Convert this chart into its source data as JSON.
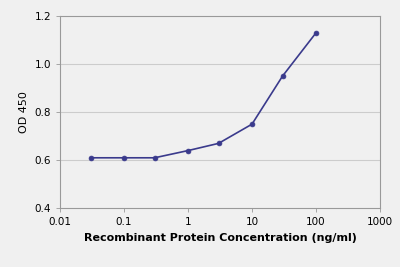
{
  "x": [
    0.03,
    0.1,
    0.3,
    1.0,
    3.0,
    10.0,
    30.0,
    100.0
  ],
  "y": [
    0.61,
    0.61,
    0.61,
    0.64,
    0.67,
    0.75,
    0.95,
    1.13
  ],
  "line_color": "#3a3a8c",
  "marker_color": "#3a3a8c",
  "marker_style": "o",
  "marker_size": 3.5,
  "line_width": 1.2,
  "xlabel": "Recombinant Protein Concentration (ng/ml)",
  "ylabel": "OD 450",
  "xlim": [
    0.01,
    1000
  ],
  "ylim": [
    0.4,
    1.2
  ],
  "yticks": [
    0.4,
    0.6,
    0.8,
    1.0,
    1.2
  ],
  "grid_yticks": [
    0.6,
    0.8,
    1.0
  ],
  "xticks": [
    0.01,
    0.1,
    1,
    10,
    100,
    1000
  ],
  "xtick_labels": [
    "0.01",
    "0.1",
    "1",
    "10",
    "100",
    "1000"
  ],
  "xlabel_fontsize": 8,
  "ylabel_fontsize": 8,
  "tick_fontsize": 7.5,
  "background_color": "#f0f0f0",
  "plot_bg_color": "#f0f0f0",
  "grid_color": "#cccccc",
  "grid_linewidth": 0.8,
  "spine_color": "#999999"
}
